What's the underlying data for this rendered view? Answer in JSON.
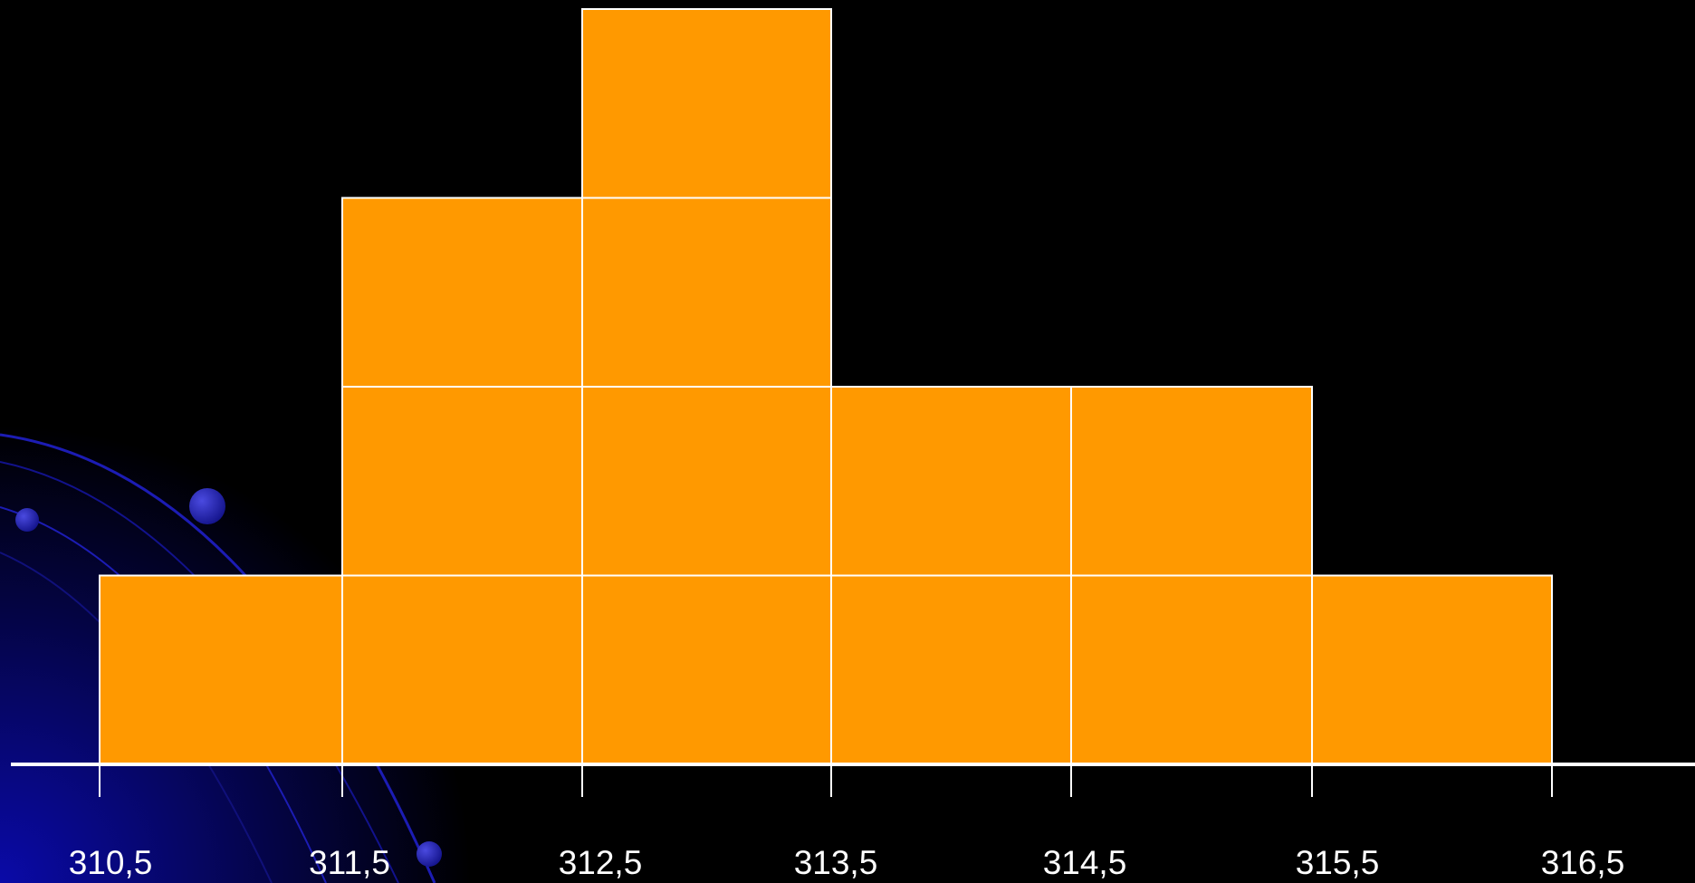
{
  "chart_data": {
    "type": "bar",
    "subtype": "histogram-stacked-units",
    "bin_edges": [
      310.5,
      311.5,
      312.5,
      313.5,
      314.5,
      315.5,
      316.5
    ],
    "tick_labels": [
      "310,5",
      "311,5",
      "312,5",
      "313,5",
      "314,5",
      "315,5",
      "316,5"
    ],
    "values": [
      1,
      3,
      4,
      2,
      2,
      1
    ],
    "title": "",
    "xlabel": "",
    "ylabel": "",
    "ylim": [
      0,
      4
    ],
    "grid": false,
    "legend": "none"
  },
  "colors": {
    "background": "#000000",
    "bar_fill": "#ff9900",
    "bar_stroke": "#ffffff",
    "axis": "#ffffff",
    "tick_label": "#ffffff",
    "decor_gradient_start": "#0a0aa8",
    "decor_gradient_end": "#000000",
    "decor_orb": "#14148c"
  }
}
